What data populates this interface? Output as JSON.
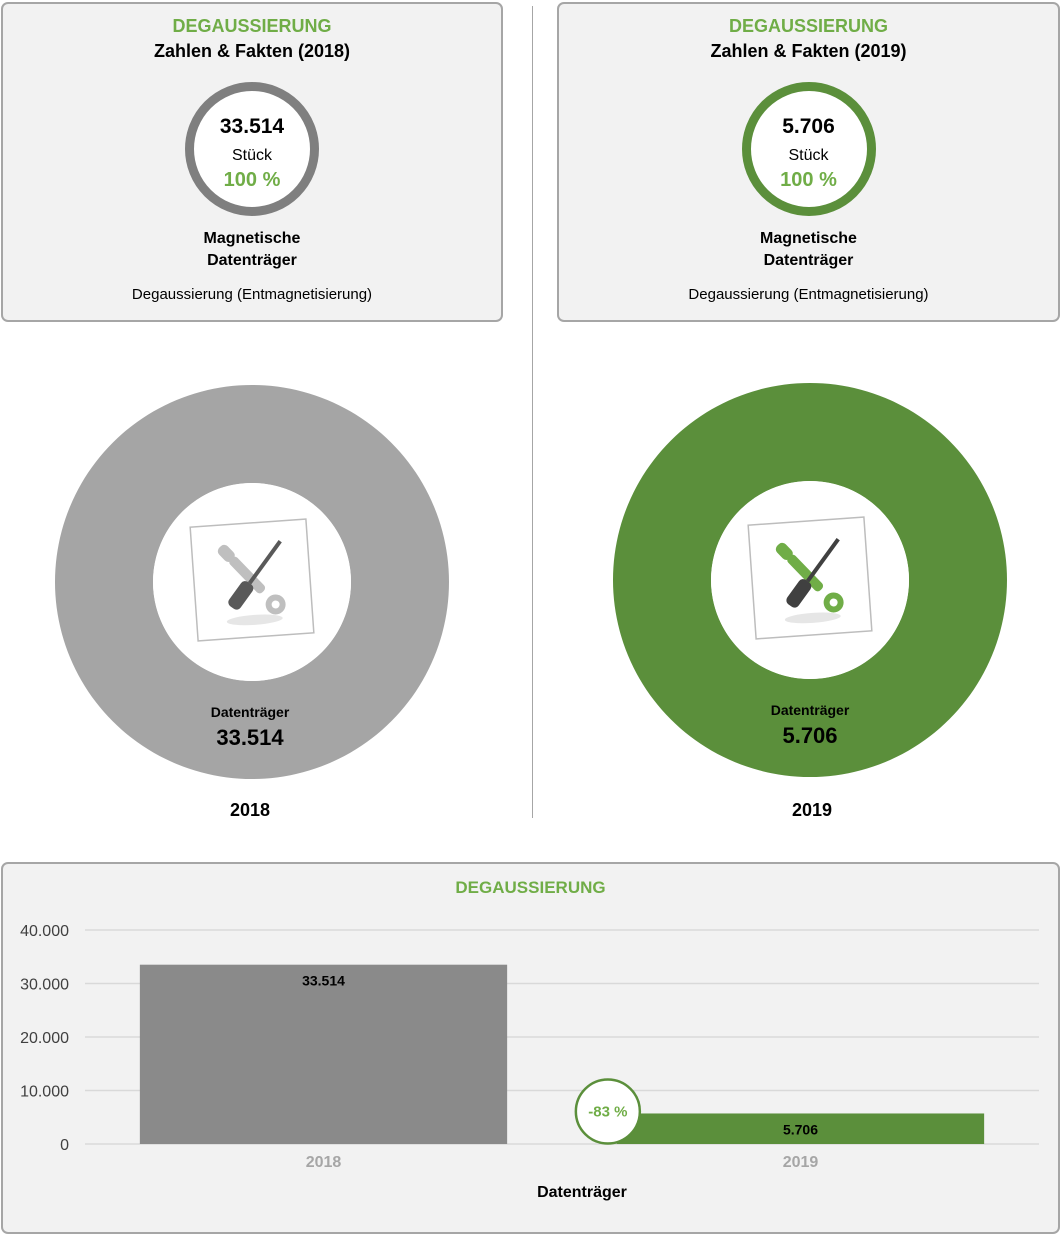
{
  "kpi_cards": [
    {
      "heading": "DEGAUSSIERUNG",
      "subtitle": "Zahlen & Fakten (2018)",
      "value": "33.514",
      "unit": "Stück",
      "percent": "100 %",
      "media_line1": "Magnetische",
      "media_line2": "Datenträger",
      "method": "Degaussierung (Entmagnetisierung)",
      "ring_color": "#7f7f7f"
    },
    {
      "heading": "DEGAUSSIERUNG",
      "subtitle": "Zahlen & Fakten (2019)",
      "value": "5.706",
      "unit": "Stück",
      "percent": "100 %",
      "media_line1": "Magnetische",
      "media_line2": "Datenträger",
      "method": "Degaussierung (Entmagnetisierung)",
      "ring_color": "#5b8f3b"
    }
  ],
  "donuts": [
    {
      "label": "Datenträger",
      "value": "33.514",
      "year": "2018",
      "color": "#a5a5a5",
      "share": 1.0,
      "icon": "tools-icon"
    },
    {
      "label": "Datenträger",
      "value": "5.706",
      "year": "2019",
      "color": "#5b8f3b",
      "share": 1.0,
      "icon": "tools-icon"
    }
  ],
  "chart_data": {
    "type": "bar",
    "title": "DEGAUSSIERUNG",
    "categories": [
      "2018",
      "2019"
    ],
    "values": [
      33514,
      5706
    ],
    "data_labels": [
      "33.514",
      "5.706"
    ],
    "bar_colors": [
      "#8a8a8a",
      "#5b8f3b"
    ],
    "xlabel": "Datenträger",
    "ylabel": "",
    "ylim": [
      0,
      40000
    ],
    "yticks": [
      0,
      10000,
      20000,
      30000,
      40000
    ],
    "ytick_labels": [
      "0",
      "10.000",
      "20.000",
      "30.000",
      "40.000"
    ],
    "grid": true,
    "change_badge": "-83 %"
  }
}
